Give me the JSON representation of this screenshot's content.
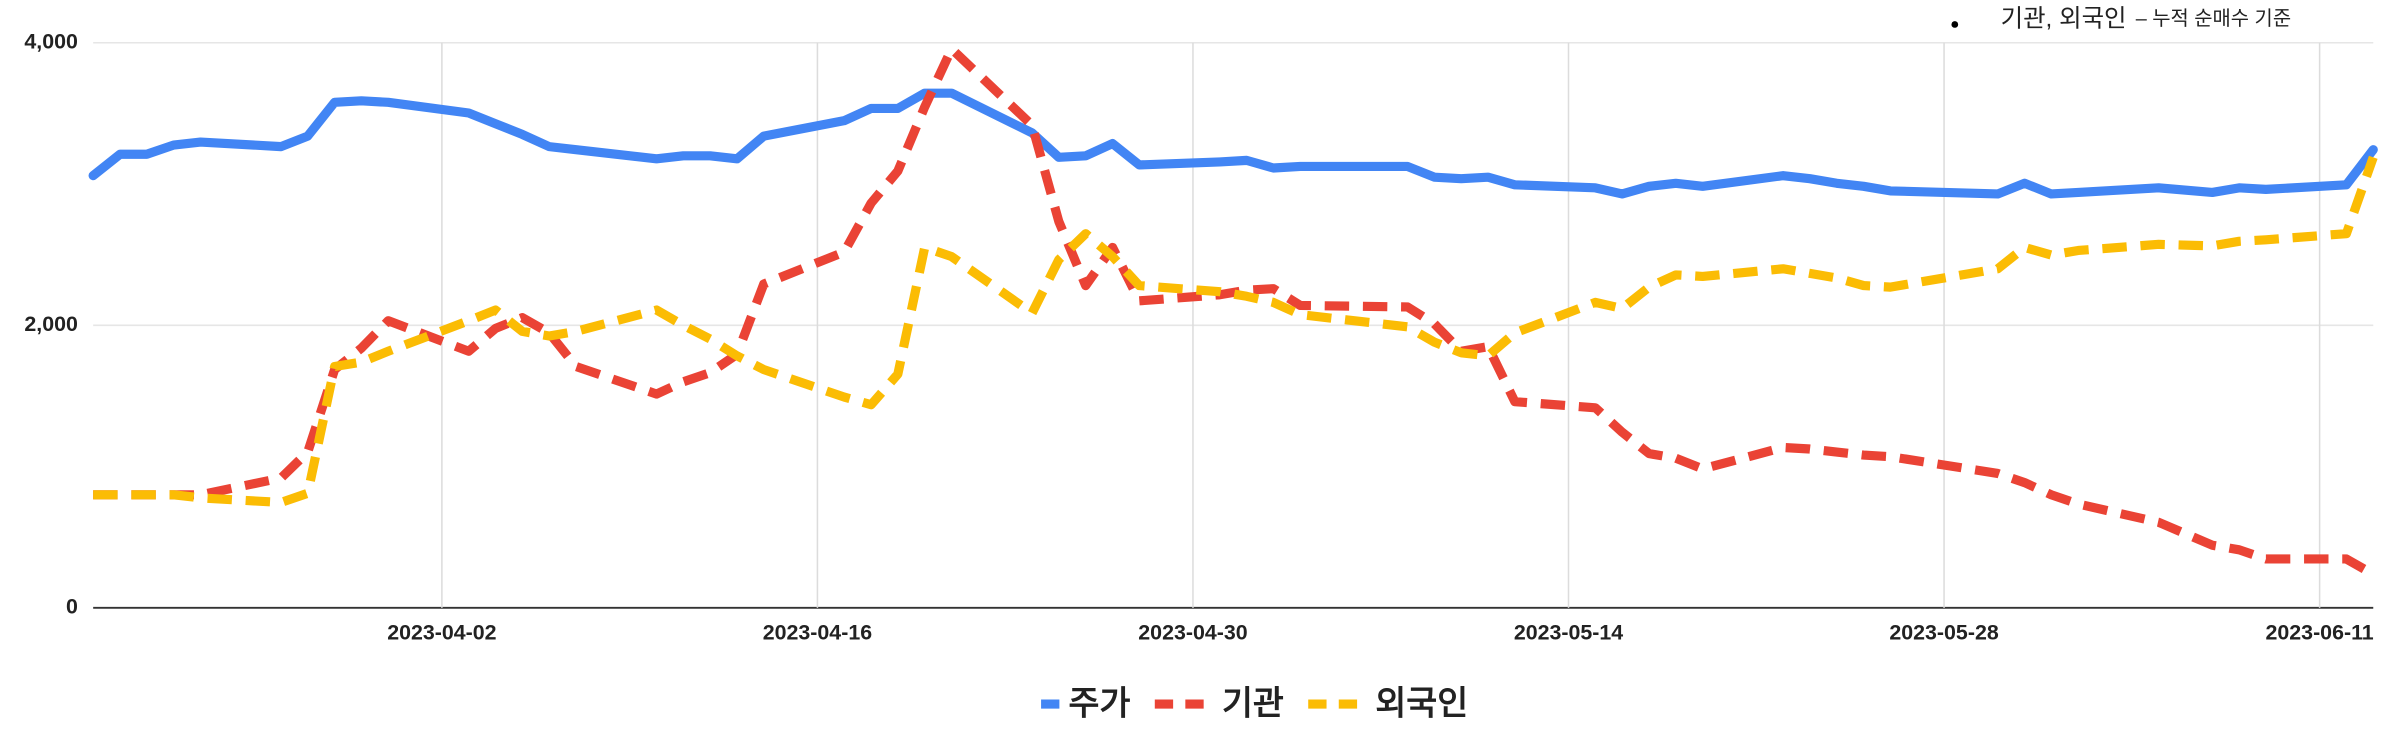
{
  "chart_data": {
    "type": "line",
    "annotations": [
      "기관, 외국인",
      "– 누적 순매수 기준"
    ],
    "x": [
      "2023-03-20",
      "2023-03-21",
      "2023-03-22",
      "2023-03-23",
      "2023-03-24",
      "2023-03-27",
      "2023-03-28",
      "2023-03-29",
      "2023-03-30",
      "2023-03-31",
      "2023-04-03",
      "2023-04-04",
      "2023-04-05",
      "2023-04-06",
      "2023-04-07",
      "2023-04-10",
      "2023-04-11",
      "2023-04-12",
      "2023-04-13",
      "2023-04-14",
      "2023-04-17",
      "2023-04-18",
      "2023-04-19",
      "2023-04-20",
      "2023-04-21",
      "2023-04-24",
      "2023-04-25",
      "2023-04-26",
      "2023-04-27",
      "2023-04-28",
      "2023-05-01",
      "2023-05-02",
      "2023-05-03",
      "2023-05-04",
      "2023-05-08",
      "2023-05-09",
      "2023-05-10",
      "2023-05-11",
      "2023-05-12",
      "2023-05-15",
      "2023-05-16",
      "2023-05-17",
      "2023-05-18",
      "2023-05-19",
      "2023-05-22",
      "2023-05-23",
      "2023-05-24",
      "2023-05-25",
      "2023-05-26",
      "2023-05-30",
      "2023-05-31",
      "2023-06-01",
      "2023-06-02",
      "2023-06-05",
      "2023-06-07",
      "2023-06-08",
      "2023-06-09",
      "2023-06-12",
      "2023-06-13"
    ],
    "series": [
      {
        "name": "주가",
        "color": "#4285f4",
        "line_style": "solid",
        "values": [
          3059,
          3211,
          3211,
          3276,
          3297,
          3265,
          3340,
          3578,
          3589,
          3578,
          3503,
          3427,
          3351,
          3265,
          3243,
          3178,
          3200,
          3200,
          3178,
          3340,
          3449,
          3535,
          3535,
          3643,
          3643,
          3362,
          3189,
          3200,
          3286,
          3135,
          3157,
          3168,
          3114,
          3124,
          3124,
          3049,
          3038,
          3049,
          2995,
          2973,
          2930,
          2984,
          3005,
          2984,
          3059,
          3038,
          3005,
          2984,
          2951,
          2930,
          3005,
          2930,
          2941,
          2973,
          2941,
          2973,
          2962,
          2995,
          3243
        ]
      },
      {
        "name": "기관",
        "color": "#ea4335",
        "line_style": "dashed",
        "values": [
          800,
          800,
          800,
          800,
          800,
          919,
          1103,
          1686,
          1838,
          2032,
          1816,
          1978,
          2054,
          1946,
          1708,
          1514,
          1600,
          1665,
          1795,
          2292,
          2519,
          2865,
          3092,
          3546,
          3957,
          3416,
          2735,
          2281,
          2551,
          2173,
          2216,
          2249,
          2259,
          2141,
          2130,
          2011,
          1816,
          1849,
          1459,
          1416,
          1243,
          1092,
          1059,
          984,
          1135,
          1124,
          1103,
          1081,
          1070,
          951,
          886,
          800,
          735,
          605,
          443,
          411,
          346,
          346,
          238
        ]
      },
      {
        "name": "외국인",
        "color": "#fbbc04",
        "line_style": "dashed",
        "values": [
          800,
          800,
          800,
          800,
          778,
          746,
          811,
          1708,
          1740,
          1816,
          2032,
          2108,
          1957,
          1924,
          1957,
          2108,
          2000,
          1903,
          1784,
          1686,
          1492,
          1438,
          1654,
          2551,
          2486,
          2086,
          2465,
          2649,
          2486,
          2281,
          2238,
          2205,
          2162,
          2076,
          1989,
          1881,
          1805,
          1784,
          1946,
          2162,
          2119,
          2270,
          2357,
          2346,
          2400,
          2368,
          2335,
          2281,
          2270,
          2400,
          2551,
          2497,
          2530,
          2573,
          2562,
          2595,
          2605,
          2649,
          3189
        ]
      }
    ],
    "xlim": [
      "2023-03-20",
      "2023-06-13"
    ],
    "xticks": [
      "2023-04-02",
      "2023-04-16",
      "2023-04-30",
      "2023-05-14",
      "2023-05-28",
      "2023-06-11"
    ],
    "ylim": [
      0,
      4000
    ],
    "yticks": [
      0,
      {
        "value": 2000,
        "label": "2,000"
      },
      {
        "value": 4000,
        "label": "4,000"
      }
    ],
    "grid": true,
    "legend": "bottom"
  }
}
